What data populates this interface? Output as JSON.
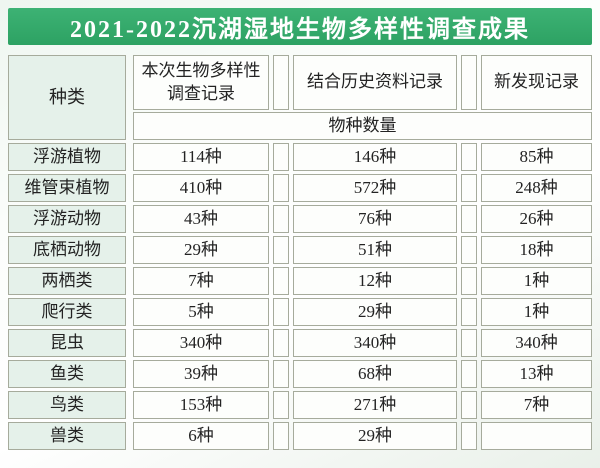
{
  "title": "2021-2022沉湖湿地生物多样性调查成果",
  "table": {
    "species_col_header": "种类",
    "col_headers": {
      "survey": "本次生物多样性调查记录",
      "historical": "结合历史资料记录",
      "new_found": "新发现记录"
    },
    "subheader": "物种数量",
    "rows": [
      {
        "species": "浮游植物",
        "survey": "114种",
        "historical": "146种",
        "new_found": "85种"
      },
      {
        "species": "维管束植物",
        "survey": "410种",
        "historical": "572种",
        "new_found": "248种"
      },
      {
        "species": "浮游动物",
        "survey": "43种",
        "historical": "76种",
        "new_found": "26种"
      },
      {
        "species": "底栖动物",
        "survey": "29种",
        "historical": "51种",
        "new_found": "18种"
      },
      {
        "species": "两栖类",
        "survey": "7种",
        "historical": "12种",
        "new_found": "1种"
      },
      {
        "species": "爬行类",
        "survey": "5种",
        "historical": "29种",
        "new_found": "1种"
      },
      {
        "species": "昆虫",
        "survey": "340种",
        "historical": "340种",
        "new_found": "340种"
      },
      {
        "species": "鱼类",
        "survey": "39种",
        "historical": "68种",
        "new_found": "13种"
      },
      {
        "species": "鸟类",
        "survey": "153种",
        "historical": "271种",
        "new_found": "7种"
      },
      {
        "species": "兽类",
        "survey": "6种",
        "historical": "29种",
        "new_found": ""
      }
    ]
  },
  "colors": {
    "title_green": "#2fa666",
    "species_column_tint": "#e5f1ea",
    "cell_background": "#fdfefc",
    "border": "#a6ab9c",
    "title_text": "#ffffff"
  },
  "chart_data": {
    "type": "table",
    "title": "2021-2022沉湖湿地生物多样性调查成果",
    "columns": [
      "种类",
      "本次生物多样性调查记录",
      "结合历史资料记录",
      "新发现记录"
    ],
    "value_unit_header": "物种数量",
    "rows": [
      [
        "浮游植物",
        "114种",
        "146种",
        "85种"
      ],
      [
        "维管束植物",
        "410种",
        "572种",
        "248种"
      ],
      [
        "浮游动物",
        "43种",
        "76种",
        "26种"
      ],
      [
        "底栖动物",
        "29种",
        "51种",
        "18种"
      ],
      [
        "两栖类",
        "7种",
        "12种",
        "1种"
      ],
      [
        "爬行类",
        "5种",
        "29种",
        "1种"
      ],
      [
        "昆虫",
        "340种",
        "340种",
        "340种"
      ],
      [
        "鱼类",
        "39种",
        "68种",
        "13种"
      ],
      [
        "鸟类",
        "153种",
        "271种",
        "7种"
      ],
      [
        "兽类",
        "6种",
        "29种",
        ""
      ]
    ]
  }
}
